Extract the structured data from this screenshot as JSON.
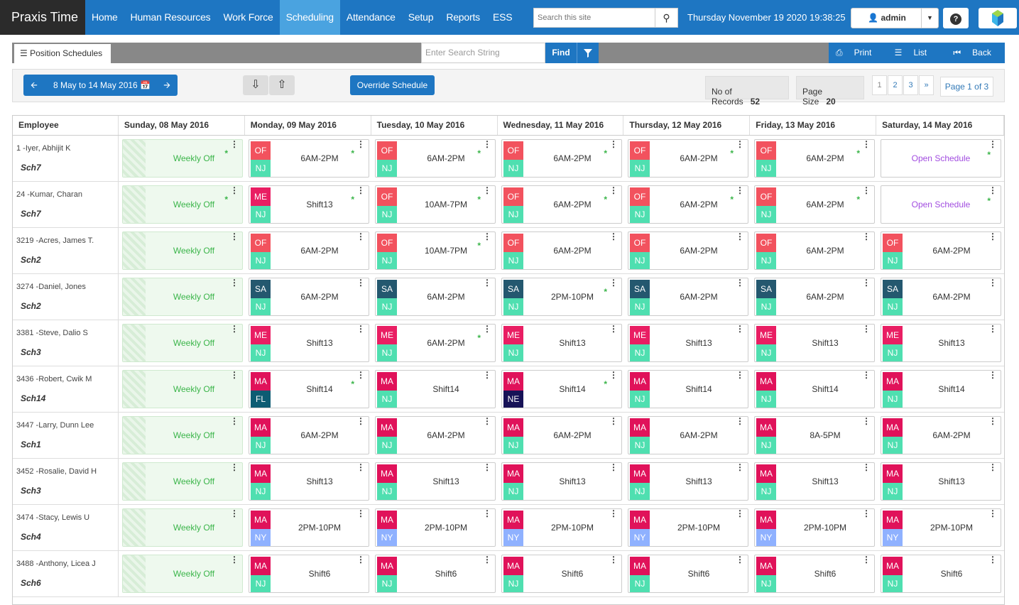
{
  "app": {
    "brand": "Praxis Time"
  },
  "nav": [
    "Home",
    "Human Resources",
    "Work Force",
    "Scheduling",
    "Attendance",
    "Setup",
    "Reports",
    "ESS"
  ],
  "search": {
    "placeholder": "Search this site"
  },
  "datetime": "Thursday November 19 2020 19:38:25",
  "user": "admin",
  "subbar": {
    "tab": "Position Schedules",
    "find_placeholder": "Enter Search String",
    "find": "Find",
    "print": "Print",
    "list": "List",
    "back": "Back"
  },
  "toolbar": {
    "date_range": "8 May to 14 May 2016",
    "override": "Override Schedule",
    "records_label": "No of Records",
    "records_value": "52",
    "page_size_label": "Page Size",
    "page_size_value": "20",
    "pages": [
      "1",
      "2",
      "3",
      "»"
    ],
    "page_of": "Page 1 of 3"
  },
  "columns": [
    "Employee",
    "Sunday, 08 May 2016",
    "Monday, 09 May 2016",
    "Tuesday, 10 May 2016",
    "Wednesday, 11 May 2016",
    "Thursday, 12 May 2016",
    "Friday, 13 May 2016",
    "Saturday, 14 May 2016"
  ],
  "colors": {
    "OF": "#f2525e",
    "ME": "#e91e63",
    "SA": "#24586f",
    "MA": "#e0125a",
    "NJ": "#4fdfb0",
    "FL": "#0d5c73",
    "NE": "#171257",
    "NY": "#8fb1ff"
  },
  "rows": [
    {
      "emp": "1 -Iyer, Abhijit K",
      "sch": "Sch7",
      "cells": [
        {
          "type": "off",
          "text": "Weekly Off",
          "star": true
        },
        {
          "b1": "OF",
          "b2": "NJ",
          "text": "6AM-2PM",
          "star": true
        },
        {
          "b1": "OF",
          "b2": "NJ",
          "text": "6AM-2PM",
          "star": true
        },
        {
          "b1": "OF",
          "b2": "NJ",
          "text": "6AM-2PM",
          "star": true
        },
        {
          "b1": "OF",
          "b2": "NJ",
          "text": "6AM-2PM",
          "star": true
        },
        {
          "b1": "OF",
          "b2": "NJ",
          "text": "6AM-2PM",
          "star": true
        },
        {
          "type": "open",
          "text": "Open Schedule",
          "star": true
        }
      ]
    },
    {
      "emp": "24 -Kumar, Charan",
      "sch": "Sch7",
      "cells": [
        {
          "type": "off",
          "text": "Weekly Off",
          "star": true
        },
        {
          "b1": "ME",
          "b2": "NJ",
          "text": "Shift13",
          "star": true
        },
        {
          "b1": "OF",
          "b2": "NJ",
          "text": "10AM-7PM",
          "star": true
        },
        {
          "b1": "OF",
          "b2": "NJ",
          "text": "6AM-2PM",
          "star": true
        },
        {
          "b1": "OF",
          "b2": "NJ",
          "text": "6AM-2PM",
          "star": true
        },
        {
          "b1": "OF",
          "b2": "NJ",
          "text": "6AM-2PM",
          "star": true
        },
        {
          "type": "open",
          "text": "Open Schedule",
          "star": true
        }
      ]
    },
    {
      "emp": "3219 -Acres, James T.",
      "sch": "Sch2",
      "cells": [
        {
          "type": "off",
          "text": "Weekly Off",
          "star": false
        },
        {
          "b1": "OF",
          "b2": "NJ",
          "text": "6AM-2PM",
          "star": false
        },
        {
          "b1": "OF",
          "b2": "NJ",
          "text": "10AM-7PM",
          "star": true
        },
        {
          "b1": "OF",
          "b2": "NJ",
          "text": "6AM-2PM",
          "star": false
        },
        {
          "b1": "OF",
          "b2": "NJ",
          "text": "6AM-2PM",
          "star": false
        },
        {
          "b1": "OF",
          "b2": "NJ",
          "text": "6AM-2PM",
          "star": false
        },
        {
          "b1": "OF",
          "b2": "NJ",
          "text": "6AM-2PM",
          "star": false
        }
      ]
    },
    {
      "emp": "3274 -Daniel, Jones",
      "sch": "Sch2",
      "cells": [
        {
          "type": "off",
          "text": "Weekly Off",
          "star": false
        },
        {
          "b1": "SA",
          "b2": "NJ",
          "text": "6AM-2PM",
          "star": false
        },
        {
          "b1": "SA",
          "b2": "NJ",
          "text": "6AM-2PM",
          "star": false
        },
        {
          "b1": "SA",
          "b2": "NJ",
          "text": "2PM-10PM",
          "star": true
        },
        {
          "b1": "SA",
          "b2": "NJ",
          "text": "6AM-2PM",
          "star": false
        },
        {
          "b1": "SA",
          "b2": "NJ",
          "text": "6AM-2PM",
          "star": false
        },
        {
          "b1": "SA",
          "b2": "NJ",
          "text": "6AM-2PM",
          "star": false
        }
      ]
    },
    {
      "emp": "3381 -Steve, Dalio S",
      "sch": "Sch3",
      "cells": [
        {
          "type": "off",
          "text": "Weekly Off",
          "star": false
        },
        {
          "b1": "ME",
          "b2": "NJ",
          "text": "Shift13",
          "star": false
        },
        {
          "b1": "ME",
          "b2": "NJ",
          "text": "6AM-2PM",
          "star": true
        },
        {
          "b1": "ME",
          "b2": "NJ",
          "text": "Shift13",
          "star": false
        },
        {
          "b1": "ME",
          "b2": "NJ",
          "text": "Shift13",
          "star": false
        },
        {
          "b1": "ME",
          "b2": "NJ",
          "text": "Shift13",
          "star": false
        },
        {
          "b1": "ME",
          "b2": "NJ",
          "text": "Shift13",
          "star": false
        }
      ]
    },
    {
      "emp": "3436 -Robert, Cwik M",
      "sch": "Sch14",
      "cells": [
        {
          "type": "off",
          "text": "Weekly Off",
          "star": false
        },
        {
          "b1": "MA",
          "b2": "FL",
          "text": "Shift14",
          "star": true
        },
        {
          "b1": "MA",
          "b2": "NJ",
          "text": "Shift14",
          "star": false
        },
        {
          "b1": "MA",
          "b2": "NE",
          "text": "Shift14",
          "star": true
        },
        {
          "b1": "MA",
          "b2": "NJ",
          "text": "Shift14",
          "star": false
        },
        {
          "b1": "MA",
          "b2": "NJ",
          "text": "Shift14",
          "star": false
        },
        {
          "b1": "MA",
          "b2": "NJ",
          "text": "Shift14",
          "star": false
        }
      ]
    },
    {
      "emp": "3447 -Larry, Dunn Lee",
      "sch": "Sch1",
      "cells": [
        {
          "type": "off",
          "text": "Weekly Off",
          "star": false
        },
        {
          "b1": "MA",
          "b2": "NJ",
          "text": "6AM-2PM",
          "star": false
        },
        {
          "b1": "MA",
          "b2": "NJ",
          "text": "6AM-2PM",
          "star": false
        },
        {
          "b1": "MA",
          "b2": "NJ",
          "text": "6AM-2PM",
          "star": false
        },
        {
          "b1": "MA",
          "b2": "NJ",
          "text": "6AM-2PM",
          "star": false
        },
        {
          "b1": "MA",
          "b2": "NJ",
          "text": "8A-5PM",
          "star": false
        },
        {
          "b1": "MA",
          "b2": "NJ",
          "text": "6AM-2PM",
          "star": false
        }
      ]
    },
    {
      "emp": "3452 -Rosalie, David H",
      "sch": "Sch3",
      "cells": [
        {
          "type": "off",
          "text": "Weekly Off",
          "star": false
        },
        {
          "b1": "MA",
          "b2": "NJ",
          "text": "Shift13",
          "star": false
        },
        {
          "b1": "MA",
          "b2": "NJ",
          "text": "Shift13",
          "star": false
        },
        {
          "b1": "MA",
          "b2": "NJ",
          "text": "Shift13",
          "star": false
        },
        {
          "b1": "MA",
          "b2": "NJ",
          "text": "Shift13",
          "star": false
        },
        {
          "b1": "MA",
          "b2": "NJ",
          "text": "Shift13",
          "star": false
        },
        {
          "b1": "MA",
          "b2": "NJ",
          "text": "Shift13",
          "star": false
        }
      ]
    },
    {
      "emp": "3474 -Stacy, Lewis U",
      "sch": "Sch4",
      "cells": [
        {
          "type": "off",
          "text": "Weekly Off",
          "star": false
        },
        {
          "b1": "MA",
          "b2": "NY",
          "text": "2PM-10PM",
          "star": false
        },
        {
          "b1": "MA",
          "b2": "NY",
          "text": "2PM-10PM",
          "star": false
        },
        {
          "b1": "MA",
          "b2": "NY",
          "text": "2PM-10PM",
          "star": false
        },
        {
          "b1": "MA",
          "b2": "NY",
          "text": "2PM-10PM",
          "star": false
        },
        {
          "b1": "MA",
          "b2": "NY",
          "text": "2PM-10PM",
          "star": false
        },
        {
          "b1": "MA",
          "b2": "NY",
          "text": "2PM-10PM",
          "star": false
        }
      ]
    },
    {
      "emp": "3488 -Anthony, Licea J",
      "sch": "Sch6",
      "cells": [
        {
          "type": "off",
          "text": "Weekly Off",
          "star": false
        },
        {
          "b1": "MA",
          "b2": "NJ",
          "text": "Shift6",
          "star": false
        },
        {
          "b1": "MA",
          "b2": "NJ",
          "text": "Shift6",
          "star": false
        },
        {
          "b1": "MA",
          "b2": "NJ",
          "text": "Shift6",
          "star": false
        },
        {
          "b1": "MA",
          "b2": "NJ",
          "text": "Shift6",
          "star": false
        },
        {
          "b1": "MA",
          "b2": "NJ",
          "text": "Shift6",
          "star": false
        },
        {
          "b1": "MA",
          "b2": "NJ",
          "text": "Shift6",
          "star": false
        }
      ]
    }
  ]
}
